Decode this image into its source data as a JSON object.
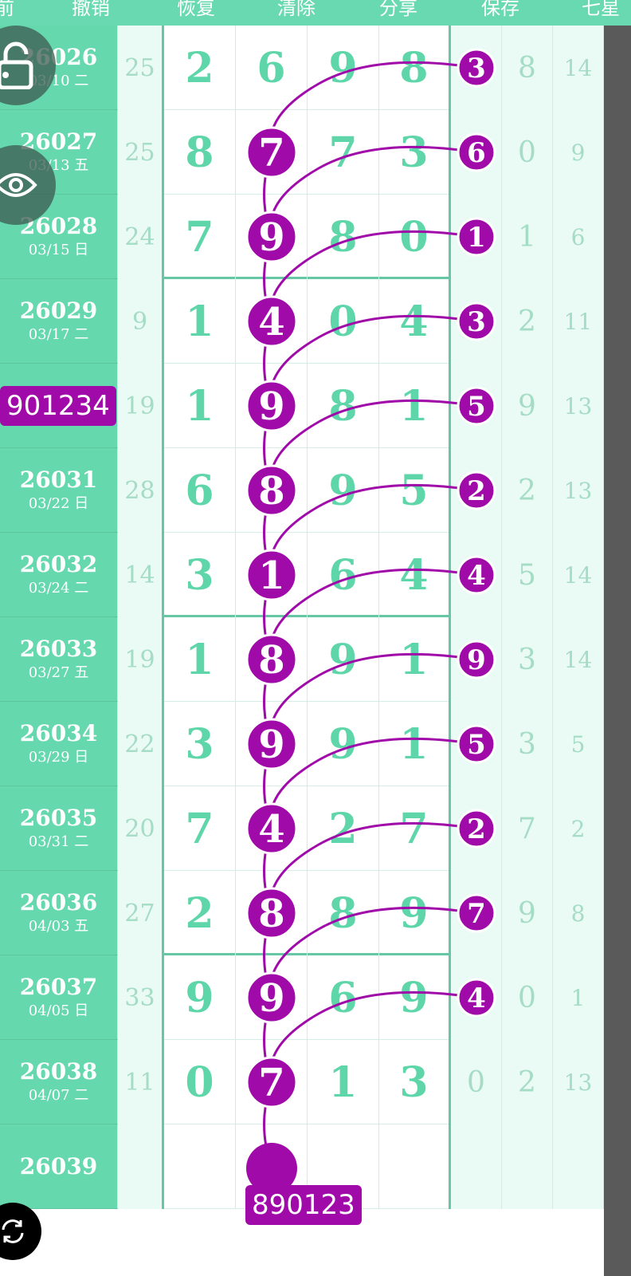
{
  "toolbar": {
    "items": [
      "前",
      "撤销",
      "恢复",
      "清除",
      "分享",
      "保存",
      "七星"
    ]
  },
  "rows": [
    {
      "period": "26026",
      "date": "03/10 二",
      "count": "25",
      "digits": [
        "2",
        "6",
        "9",
        "8"
      ],
      "circled": "3",
      "a": "8",
      "b": "14"
    },
    {
      "period": "26027",
      "date": "03/13 五",
      "count": "25",
      "digits": [
        "8",
        "7",
        "7",
        "3"
      ],
      "circled": "6",
      "a": "0",
      "b": "9"
    },
    {
      "period": "26028",
      "date": "03/15 日",
      "count": "24",
      "digits": [
        "7",
        "9",
        "8",
        "0"
      ],
      "circled": "1",
      "a": "1",
      "b": "6"
    },
    {
      "period": "26029",
      "date": "03/17 二",
      "count": "9",
      "digits": [
        "1",
        "4",
        "0",
        "4"
      ],
      "circled": "3",
      "a": "2",
      "b": "11"
    },
    {
      "period": "",
      "date": "",
      "count": "19",
      "digits": [
        "1",
        "9",
        "8",
        "1"
      ],
      "circled": "5",
      "a": "9",
      "b": "13"
    },
    {
      "period": "26031",
      "date": "03/22 日",
      "count": "28",
      "digits": [
        "6",
        "8",
        "9",
        "5"
      ],
      "circled": "2",
      "a": "2",
      "b": "13"
    },
    {
      "period": "26032",
      "date": "03/24 二",
      "count": "14",
      "digits": [
        "3",
        "1",
        "6",
        "4"
      ],
      "circled": "4",
      "a": "5",
      "b": "14"
    },
    {
      "period": "26033",
      "date": "03/27 五",
      "count": "19",
      "digits": [
        "1",
        "8",
        "9",
        "1"
      ],
      "circled": "9",
      "a": "3",
      "b": "14"
    },
    {
      "period": "26034",
      "date": "03/29 日",
      "count": "22",
      "digits": [
        "3",
        "9",
        "9",
        "1"
      ],
      "circled": "5",
      "a": "3",
      "b": "5"
    },
    {
      "period": "26035",
      "date": "03/31 二",
      "count": "20",
      "digits": [
        "7",
        "4",
        "2",
        "7"
      ],
      "circled": "2",
      "a": "7",
      "b": "2"
    },
    {
      "period": "26036",
      "date": "04/03 五",
      "count": "27",
      "digits": [
        "2",
        "8",
        "8",
        "9"
      ],
      "circled": "7",
      "a": "9",
      "b": "8"
    },
    {
      "period": "26037",
      "date": "04/05 日",
      "count": "33",
      "digits": [
        "9",
        "9",
        "6",
        "9"
      ],
      "circled": "4",
      "a": "0",
      "b": "1"
    },
    {
      "period": "26038",
      "date": "04/07 二",
      "count": "11",
      "digits": [
        "0",
        "7",
        "1",
        "3"
      ],
      "circled": "",
      "plain": "0",
      "a": "2",
      "b": "13"
    },
    {
      "period": "26039",
      "date": "",
      "count": "",
      "digits": [
        "",
        "",
        "",
        ""
      ],
      "circled": "",
      "a": "",
      "b": ""
    }
  ],
  "badges": {
    "left": "901234",
    "bottom": "890123"
  },
  "colors": {
    "accent": "#a00aa8",
    "green": "#66d8ae",
    "digit": "#5fd6a9"
  },
  "icons": [
    "lock-icon",
    "eye-icon",
    "refresh-icon"
  ]
}
